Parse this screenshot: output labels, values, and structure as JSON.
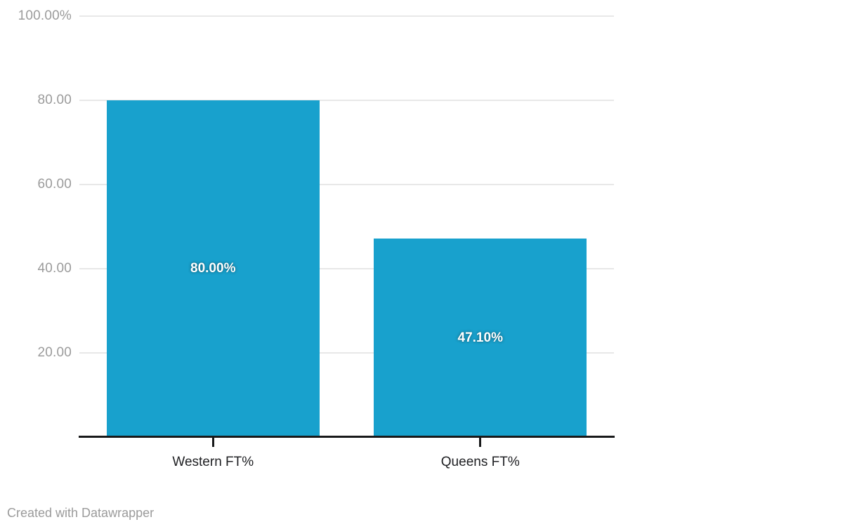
{
  "chart_data": {
    "type": "bar",
    "title": "",
    "xlabel": "",
    "ylabel": "",
    "categories": [
      "Western FT%",
      "Queens FT%"
    ],
    "values": [
      80.0,
      47.1
    ],
    "bar_labels": [
      "80.00%",
      "47.10%"
    ],
    "ylim": [
      0,
      100
    ],
    "grid": true,
    "legend": "none",
    "y_ticks": [
      {
        "value": 100,
        "label": "100.00%"
      },
      {
        "value": 80,
        "label": "80.00"
      },
      {
        "value": 60,
        "label": "60.00"
      },
      {
        "value": 40,
        "label": "40.00"
      },
      {
        "value": 20,
        "label": "20.00"
      }
    ],
    "colors": {
      "bar": "#18a1cd",
      "bar_value_label": "#ffffff",
      "gridline": "#e8e8e8",
      "axis_line": "#18191a",
      "y_tick_label": "#9b9b9b",
      "category_label": "#202124"
    }
  },
  "footer": {
    "credit": "Created with Datawrapper"
  }
}
